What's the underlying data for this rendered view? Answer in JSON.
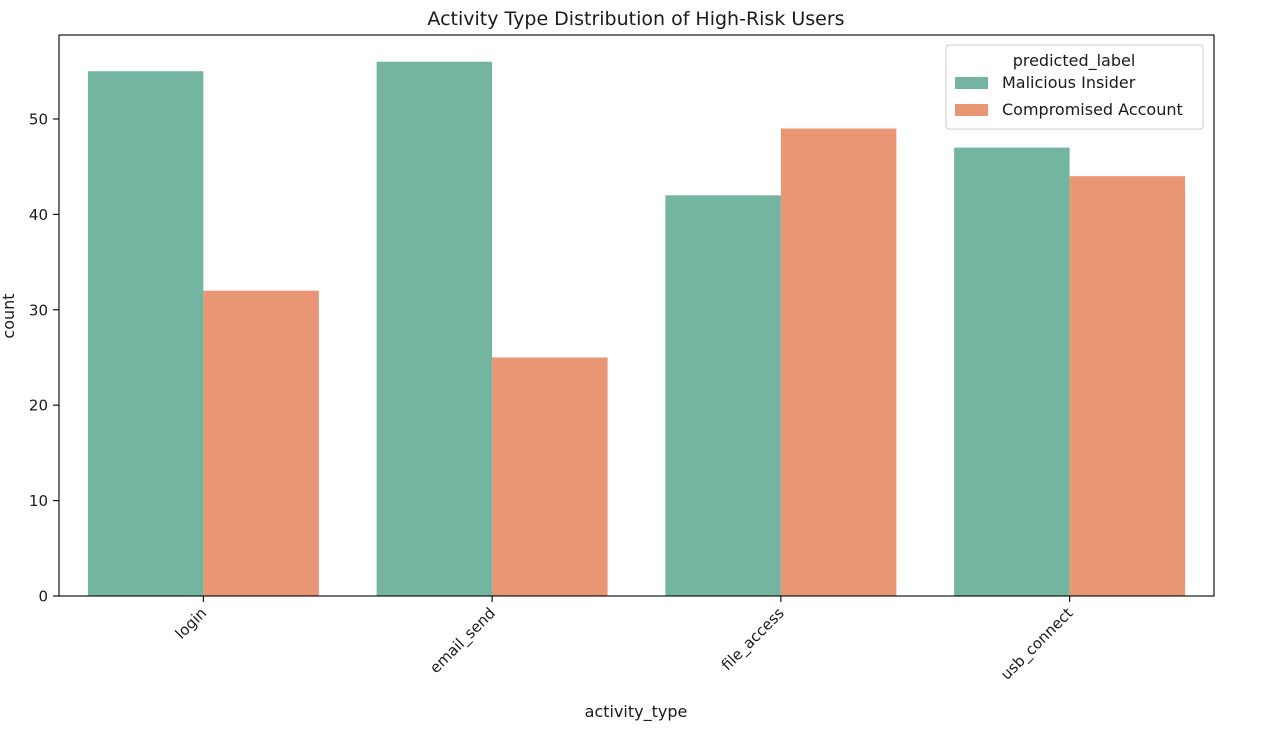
{
  "chart_data": {
    "type": "bar",
    "title": "Activity Type Distribution of High-Risk Users",
    "xlabel": "activity_type",
    "ylabel": "count",
    "categories": [
      "login",
      "email_send",
      "file_access",
      "usb_connect"
    ],
    "series": [
      {
        "name": "Malicious Insider",
        "values": [
          55,
          56,
          42,
          47
        ],
        "color": "#73b5a1"
      },
      {
        "name": "Compromised Account",
        "values": [
          32,
          25,
          49,
          44
        ],
        "color": "#e99675"
      }
    ],
    "ylim": [
      0,
      58.8
    ],
    "yticks": [
      0,
      10,
      20,
      30,
      40,
      50
    ],
    "legend_title": "predicted_label",
    "legend_position": "top-right",
    "grid": false,
    "xtick_rotation": -45
  }
}
